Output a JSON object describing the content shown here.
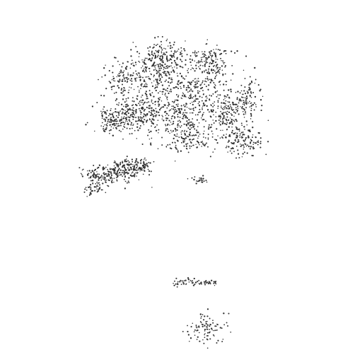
{
  "scene": {
    "background_color": "#ffffff",
    "dot_color": "#333333",
    "clusters": [
      {
        "name": "upper-mass",
        "dot_count": 1900
      },
      {
        "name": "left-lobe",
        "dot_count": 380
      },
      {
        "name": "small-center-cluster",
        "dot_count": 22
      },
      {
        "name": "lower-strip",
        "dot_count": 70
      },
      {
        "name": "bottom-cluster",
        "dot_count": 95
      }
    ]
  }
}
